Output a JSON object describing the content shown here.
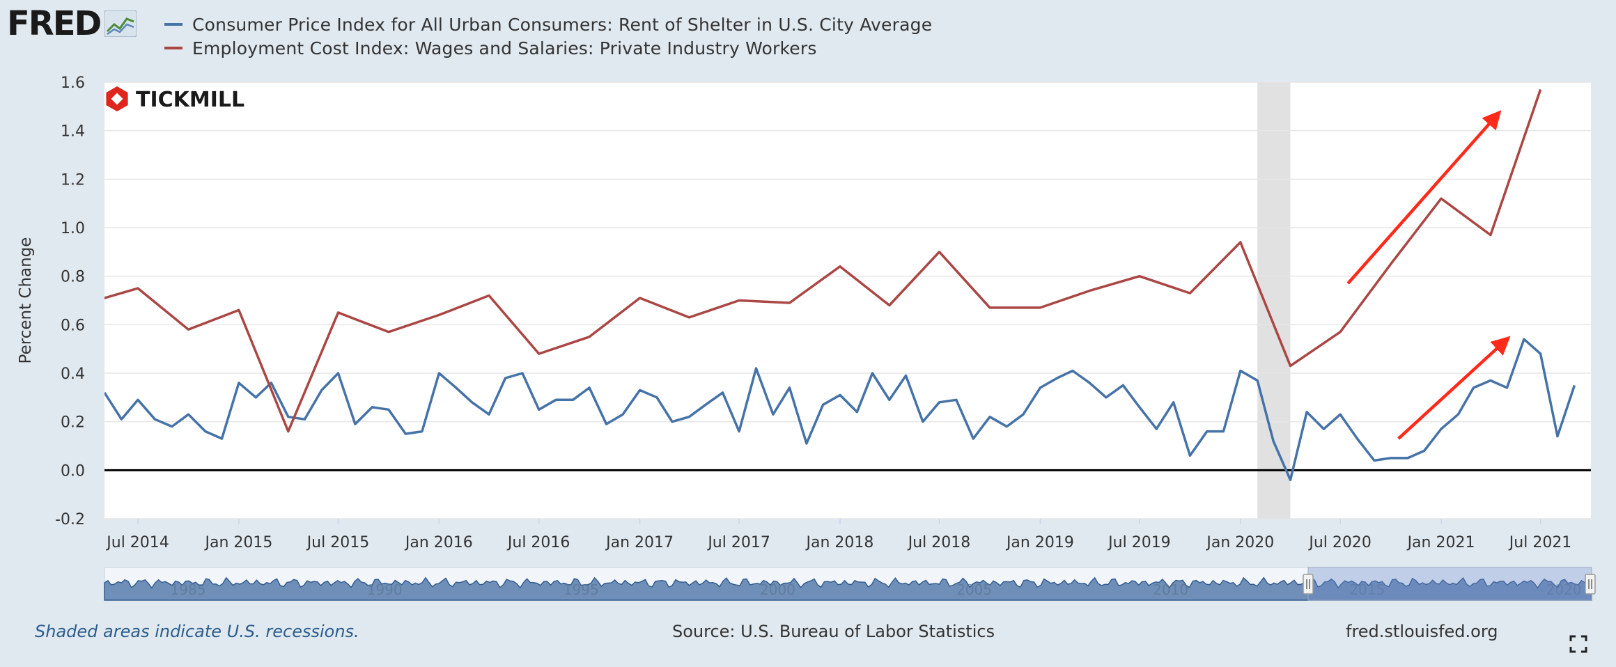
{
  "header": {
    "logo_text": "FRED",
    "logo_icon": "fred-chart-badge-icon"
  },
  "footer": {
    "note": "Shaded areas indicate U.S. recessions.",
    "source": "Source: U.S. Bureau of Labor Statistics",
    "site": "fred.stlouisfed.org",
    "fullscreen_icon": "fullscreen-icon"
  },
  "watermark": {
    "text": "TICKMILL",
    "icon": "tickmill-hexagon-icon",
    "color": "#e0251b"
  },
  "colors": {
    "shelter": "#4572a7",
    "wages": "#aa4643",
    "annotation_arrow": "#ff2a1a",
    "recession": "#e1e1e1"
  },
  "chart_data": {
    "type": "line",
    "ylabel": "Percent Change",
    "ylim": [
      -0.2,
      1.6
    ],
    "yticks": [
      "1.6",
      "1.4",
      "1.2",
      "1.0",
      "0.8",
      "0.6",
      "0.4",
      "0.2",
      "0.0",
      "-0.2"
    ],
    "xlim": [
      "2014-05-01",
      "2021-10-01"
    ],
    "xticks": [
      {
        "label": "Jul 2014",
        "date": "2014-07-01"
      },
      {
        "label": "Jan 2015",
        "date": "2015-01-01"
      },
      {
        "label": "Jul 2015",
        "date": "2015-07-01"
      },
      {
        "label": "Jan 2016",
        "date": "2016-01-01"
      },
      {
        "label": "Jul 2016",
        "date": "2016-07-01"
      },
      {
        "label": "Jan 2017",
        "date": "2017-01-01"
      },
      {
        "label": "Jul 2017",
        "date": "2017-07-01"
      },
      {
        "label": "Jan 2018",
        "date": "2018-01-01"
      },
      {
        "label": "Jul 2018",
        "date": "2018-07-01"
      },
      {
        "label": "Jan 2019",
        "date": "2019-01-01"
      },
      {
        "label": "Jul 2019",
        "date": "2019-07-01"
      },
      {
        "label": "Jan 2020",
        "date": "2020-01-01"
      },
      {
        "label": "Jul 2020",
        "date": "2020-07-01"
      },
      {
        "label": "Jan 2021",
        "date": "2021-01-01"
      },
      {
        "label": "Jul 2021",
        "date": "2021-07-01"
      }
    ],
    "recessions": [
      {
        "start": "2020-02-01",
        "end": "2020-04-01"
      }
    ],
    "zero_line": 0,
    "grid": "horizontal",
    "legend": "top-left",
    "series": [
      {
        "name": "Consumer Price Index for All Urban Consumers: Rent of Shelter in U.S. City Average",
        "color": "#4572a7",
        "frequency": "monthly",
        "start": "2014-05-01",
        "values": [
          0.32,
          0.21,
          0.29,
          0.21,
          0.18,
          0.23,
          0.16,
          0.13,
          0.36,
          0.3,
          0.36,
          0.22,
          0.21,
          0.33,
          0.4,
          0.19,
          0.26,
          0.25,
          0.15,
          0.16,
          0.4,
          0.34,
          0.28,
          0.23,
          0.38,
          0.4,
          0.25,
          0.29,
          0.29,
          0.34,
          0.19,
          0.23,
          0.33,
          0.3,
          0.2,
          0.22,
          0.27,
          0.32,
          0.16,
          0.42,
          0.23,
          0.34,
          0.11,
          0.27,
          0.31,
          0.24,
          0.4,
          0.29,
          0.39,
          0.2,
          0.28,
          0.29,
          0.13,
          0.22,
          0.18,
          0.23,
          0.34,
          0.38,
          0.41,
          0.36,
          0.3,
          0.35,
          0.26,
          0.17,
          0.28,
          0.06,
          0.16,
          0.16,
          0.41,
          0.37,
          0.12,
          -0.04,
          0.24,
          0.17,
          0.23,
          0.13,
          0.04,
          0.05,
          0.05,
          0.08,
          0.17,
          0.23,
          0.34,
          0.37,
          0.34,
          0.54,
          0.48,
          0.14,
          0.35
        ]
      },
      {
        "name": "Employment Cost Index: Wages and Salaries: Private Industry Workers",
        "color": "#aa4643",
        "frequency": "quarterly",
        "dates": [
          "2014-04-01",
          "2014-07-01",
          "2014-10-01",
          "2015-01-01",
          "2015-04-01",
          "2015-07-01",
          "2015-10-01",
          "2016-01-01",
          "2016-04-01",
          "2016-07-01",
          "2016-10-01",
          "2017-01-01",
          "2017-04-01",
          "2017-07-01",
          "2017-10-01",
          "2018-01-01",
          "2018-04-01",
          "2018-07-01",
          "2018-10-01",
          "2019-01-01",
          "2019-04-01",
          "2019-07-01",
          "2019-10-01",
          "2020-01-01",
          "2020-04-01",
          "2020-07-01",
          "2020-10-01",
          "2021-01-01",
          "2021-04-01",
          "2021-07-01"
        ],
        "values": [
          0.69,
          0.75,
          0.58,
          0.66,
          0.16,
          0.65,
          0.57,
          0.64,
          0.72,
          0.48,
          0.55,
          0.71,
          0.63,
          0.7,
          0.69,
          0.84,
          0.68,
          0.9,
          0.67,
          0.67,
          0.74,
          0.8,
          0.73,
          0.94,
          0.43,
          0.57,
          0.85,
          1.12,
          0.97,
          1.57
        ]
      }
    ],
    "annotations": [
      {
        "type": "arrow",
        "from": [
          "2020-07-15",
          0.77
        ],
        "to": [
          "2021-04-15",
          1.47
        ]
      },
      {
        "type": "arrow",
        "from": [
          "2020-10-15",
          0.13
        ],
        "to": [
          "2021-05-01",
          0.54
        ]
      }
    ],
    "navigator": {
      "labels": [
        "1985",
        "1990",
        "1995",
        "2000",
        "2005",
        "2010",
        "2015",
        "2020"
      ]
    }
  }
}
